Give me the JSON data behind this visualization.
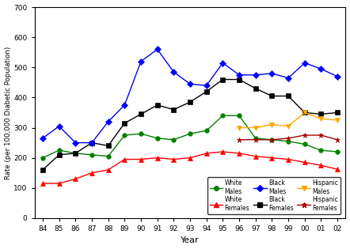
{
  "years": [
    1984,
    1985,
    1986,
    1987,
    1988,
    1989,
    1990,
    1991,
    1992,
    1993,
    1994,
    1995,
    1996,
    1997,
    1998,
    1999,
    2000,
    2001,
    2002
  ],
  "white_males": [
    200,
    225,
    215,
    210,
    205,
    275,
    280,
    265,
    260,
    280,
    290,
    340,
    340,
    265,
    260,
    255,
    245,
    225,
    220
  ],
  "black_females": [
    160,
    210,
    215,
    250,
    240,
    315,
    345,
    375,
    360,
    385,
    420,
    460,
    460,
    430,
    405,
    405,
    350,
    345,
    350
  ],
  "white_females": [
    115,
    115,
    130,
    150,
    160,
    195,
    195,
    200,
    195,
    200,
    215,
    220,
    215,
    205,
    200,
    195,
    185,
    175,
    162
  ],
  "hispanic_males": [
    null,
    null,
    null,
    null,
    null,
    null,
    null,
    null,
    null,
    null,
    null,
    null,
    300,
    300,
    310,
    305,
    350,
    330,
    325
  ],
  "black_males": [
    265,
    305,
    250,
    250,
    320,
    375,
    520,
    560,
    485,
    445,
    440,
    515,
    475,
    475,
    480,
    465,
    515,
    495,
    470
  ],
  "hispanic_females": [
    null,
    null,
    null,
    null,
    null,
    null,
    null,
    null,
    null,
    null,
    null,
    null,
    260,
    260,
    260,
    265,
    275,
    275,
    260
  ],
  "white_males_color": "#008000",
  "black_females_color": "#000000",
  "white_females_color": "#ff0000",
  "hispanic_males_color": "#ffa500",
  "black_males_color": "#0000ff",
  "hispanic_females_color": "#aa0000",
  "ylabel": "Rate (per 100,000 Diabetic Population)",
  "xlabel": "Year",
  "ylim": [
    0,
    700
  ],
  "yticks": [
    0,
    100,
    200,
    300,
    400,
    500,
    600,
    700
  ],
  "xtick_labels": [
    "84",
    "85",
    "86",
    "87",
    "88",
    "89",
    "90",
    "91",
    "92",
    "93",
    "94",
    "95",
    "96",
    "97",
    "98",
    "99",
    "00",
    "01",
    "02"
  ],
  "background_color": "#ffffff",
  "legend_entries": [
    {
      "label": "White\nMales",
      "color": "#008000",
      "marker": "o",
      "markersize": 4
    },
    {
      "label": "White\nFemales",
      "color": "#ff0000",
      "marker": "^",
      "markersize": 5
    },
    {
      "label": "Black\nMales",
      "color": "#0000ff",
      "marker": "D",
      "markersize": 4
    },
    {
      "label": "Black\nFemales",
      "color": "#000000",
      "marker": "s",
      "markersize": 4
    },
    {
      "label": "Hispanic\nMales",
      "color": "#ffa500",
      "marker": "v",
      "markersize": 5
    },
    {
      "label": "Hispanic\nFemales",
      "color": "#aa0000",
      "marker": "*",
      "markersize": 5
    }
  ]
}
